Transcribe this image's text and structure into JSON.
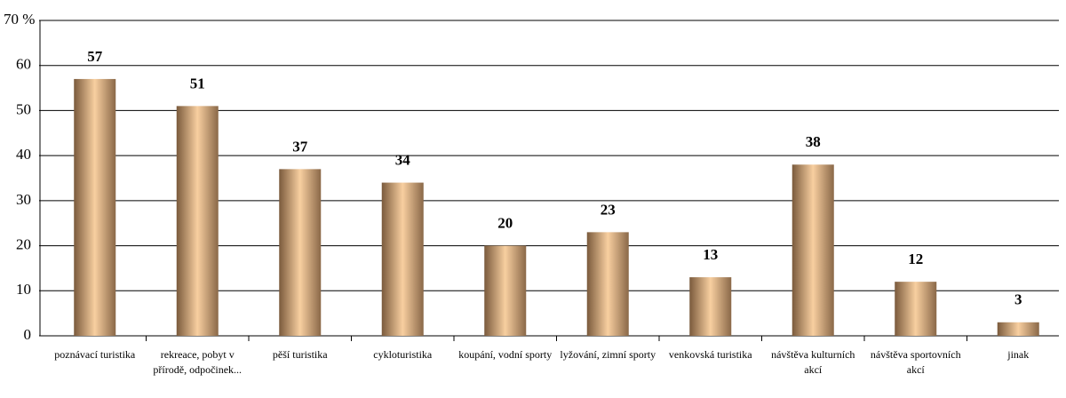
{
  "chart_data": {
    "type": "bar",
    "categories": [
      "poznávací turistika",
      "rekreace, pobyt v přírodě, odpočinek...",
      "pěší turistika",
      "cykloturistika",
      "koupání, vodní sporty",
      "lyžování, zimní sporty",
      "venkovská turistika",
      "návštěva kulturních akcí",
      "návštěva sportovních akcí",
      "jinak"
    ],
    "values": [
      57,
      51,
      37,
      34,
      20,
      23,
      13,
      38,
      12,
      3
    ],
    "color": "#f8cfa0",
    "ylim": [
      0,
      70
    ],
    "yticks": [
      0,
      10,
      20,
      30,
      40,
      50,
      60,
      {
        "value": 70,
        "label": "70 %"
      }
    ],
    "grid": true
  }
}
